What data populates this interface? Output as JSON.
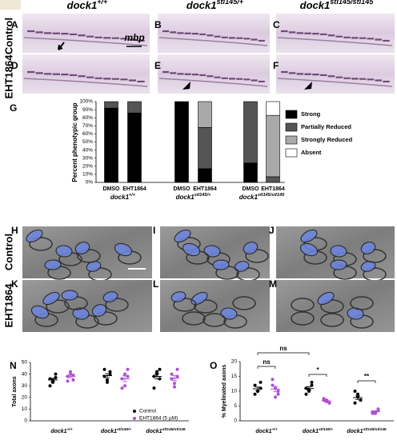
{
  "figure": {
    "panel_labels": [
      "A",
      "B",
      "C",
      "D",
      "E",
      "F",
      "G",
      "H",
      "I",
      "J",
      "K",
      "L",
      "M",
      "N",
      "O"
    ],
    "headers": [
      {
        "gene": "dock1",
        "allele": "+/+"
      },
      {
        "gene": "dock1",
        "allele": "stl145/+"
      },
      {
        "gene": "dock1",
        "allele": "stl145/stl145"
      }
    ],
    "row_labels_top": [
      "Control",
      "EHT1864"
    ],
    "row_labels_em": [
      "Control",
      "EHT1864"
    ],
    "marker_label": "mbp"
  },
  "chart_data": [
    {
      "type": "stacked-bar",
      "y_label": "Percent phenotypic group",
      "categories": [
        "DMSO",
        "EHT1864",
        "DMSO",
        "EHT1864",
        "DMSO",
        "EHT1864"
      ],
      "groups": [
        {
          "gene": "dock1",
          "allele": "+/+"
        },
        {
          "gene": "dock1",
          "allele": "stl145/+"
        },
        {
          "gene": "dock1",
          "allele": "stl145/stl145"
        }
      ],
      "series": [
        {
          "name": "Strong",
          "color": "#000000",
          "values": [
            92,
            86,
            100,
            17,
            24,
            0
          ]
        },
        {
          "name": "Partially Reduced",
          "color": "#555555",
          "values": [
            8,
            14,
            0,
            51,
            76,
            7
          ]
        },
        {
          "name": "Strongly Reduced",
          "color": "#a9a9a9",
          "values": [
            0,
            0,
            0,
            32,
            0,
            76
          ]
        },
        {
          "name": "Absent",
          "color": "#ffffff",
          "values": [
            0,
            0,
            0,
            0,
            0,
            17
          ]
        }
      ],
      "ylim": [
        0,
        100
      ],
      "yticks": [
        {
          "value": 0,
          "label": "0%"
        },
        {
          "value": 10,
          "label": "10%"
        },
        {
          "value": 20,
          "label": "20%"
        },
        {
          "value": 30,
          "label": "30%"
        },
        {
          "value": 40,
          "label": "40%"
        },
        {
          "value": 50,
          "label": "50%"
        },
        {
          "value": 60,
          "label": "60%"
        },
        {
          "value": 70,
          "label": "70%"
        },
        {
          "value": 80,
          "label": "80%"
        },
        {
          "value": 90,
          "label": "90%"
        },
        {
          "value": 100,
          "label": "100%"
        }
      ]
    },
    {
      "type": "dot",
      "y_label": "Total axons",
      "groups": [
        {
          "gene": "dock1",
          "allele": "+/+"
        },
        {
          "gene": "dock1",
          "allele": "stl145/+"
        },
        {
          "gene": "dock1",
          "allele": "stl145/stl145"
        }
      ],
      "series": [
        {
          "name": "Control",
          "color": "#000000",
          "groups": [
            {
              "values": [
                36,
                33,
                37,
                30,
                35,
                40
              ],
              "mean": 35,
              "sem": 1.4
            },
            {
              "values": [
                38,
                35,
                42,
                44,
                33,
                40
              ],
              "mean": 38.7,
              "sem": 1.7
            },
            {
              "values": [
                38,
                42,
                36,
                28,
                40,
                44
              ],
              "mean": 38,
              "sem": 2.3
            }
          ]
        },
        {
          "name": "EHT1864 (5 µM)",
          "color": "#b04fd6",
          "groups": [
            {
              "values": [
                38,
                40,
                35,
                34,
                42,
                39
              ],
              "mean": 38,
              "sem": 1.2
            },
            {
              "values": [
                36,
                30,
                44,
                28,
                40,
                38
              ],
              "mean": 36,
              "sem": 2.5
            },
            {
              "values": [
                36,
                32,
                44,
                40,
                29,
                38
              ],
              "mean": 36.5,
              "sem": 2.2
            }
          ]
        }
      ],
      "ylim": [
        0,
        50
      ],
      "yticks": [
        0,
        10,
        20,
        30,
        40,
        50
      ]
    },
    {
      "type": "dot",
      "y_label": "% Myelinated axons",
      "groups": [
        {
          "gene": "dock1",
          "allele": "+/+"
        },
        {
          "gene": "dock1",
          "allele": "stl145/+"
        },
        {
          "gene": "dock1",
          "allele": "stl145/stl145"
        }
      ],
      "series": [
        {
          "color": "#000000",
          "groups": [
            {
              "values": [
                12,
                10,
                13,
                9,
                10,
                11
              ],
              "mean": 10.8,
              "sem": 0.6
            },
            {
              "values": [
                11,
                10,
                12,
                9,
                10.5,
                13
              ],
              "mean": 10.9,
              "sem": 0.6
            },
            {
              "values": [
                10,
                8,
                7,
                6,
                9,
                7
              ],
              "mean": 7.8,
              "sem": 0.6
            }
          ]
        },
        {
          "color": "#b04fd6",
          "groups": [
            {
              "values": [
                14,
                11,
                10,
                12,
                8,
                9
              ],
              "mean": 10.7,
              "sem": 0.9
            },
            {
              "values": [
                7,
                6.5,
                6,
                7.5,
                7,
                6
              ],
              "mean": 6.7,
              "sem": 0.3
            },
            {
              "values": [
                3,
                2.5,
                3.5,
                2.5,
                3,
                4
              ],
              "mean": 3.1,
              "sem": 0.2
            }
          ]
        }
      ],
      "annotations": [
        {
          "text": "ns",
          "from": 0,
          "to": 1
        },
        {
          "text": "ns",
          "from": 0,
          "to": 2
        },
        {
          "text": "*",
          "from": 2,
          "to": 3
        },
        {
          "text": "**",
          "from": 4,
          "to": 5
        }
      ],
      "ylim": [
        0,
        20
      ],
      "yticks": [
        0,
        5,
        10,
        15,
        20
      ]
    }
  ]
}
